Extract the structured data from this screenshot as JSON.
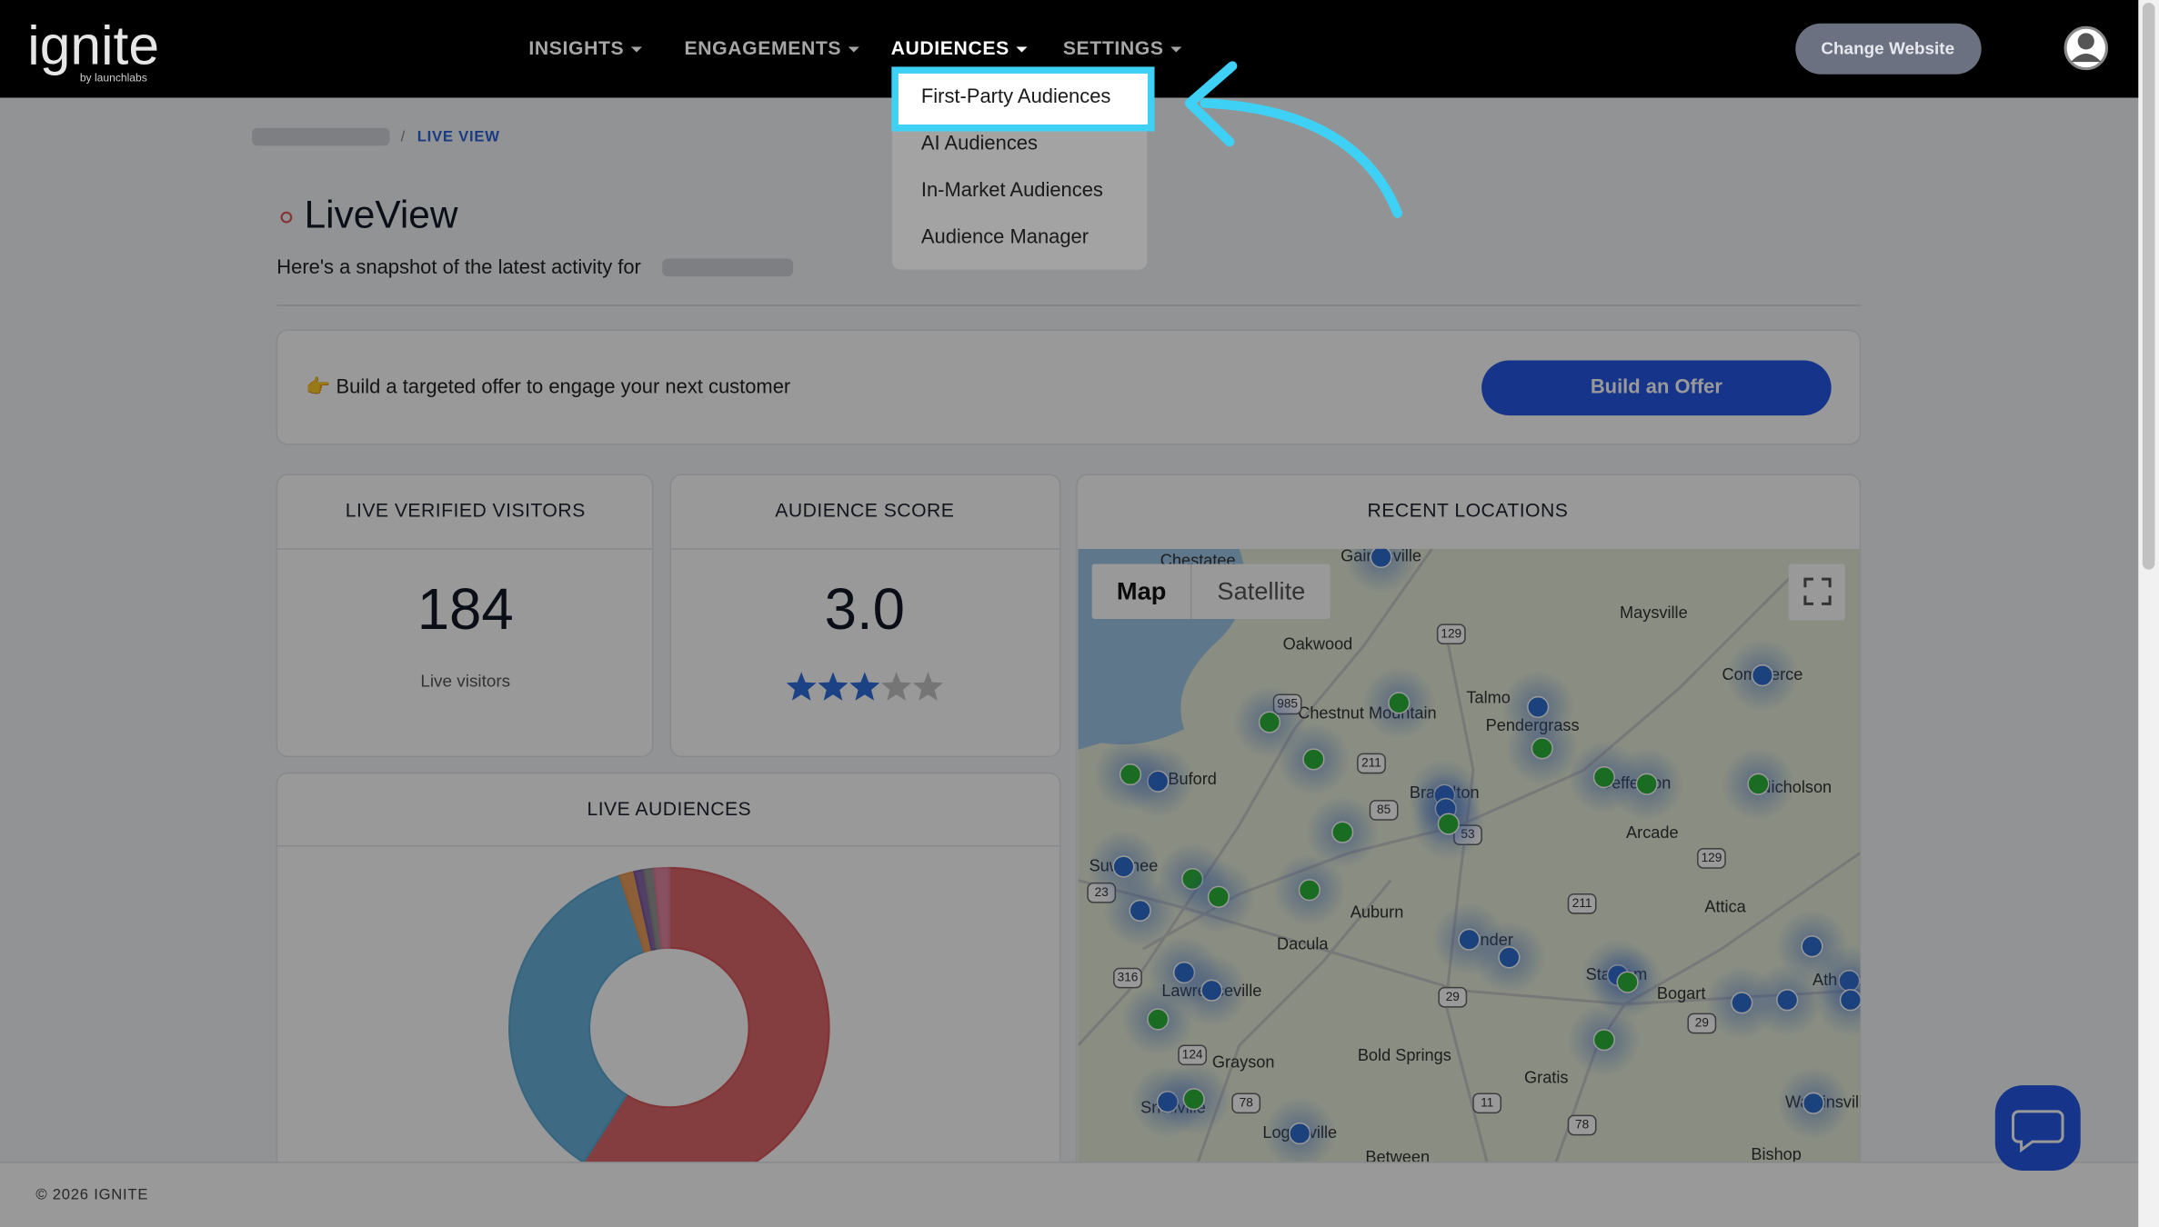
{
  "header": {
    "logo": "ignite",
    "logo_sub": "by launchlabs",
    "menu": [
      "INSIGHTS",
      "ENGAGEMENTS",
      "AUDIENCES",
      "SETTINGS"
    ],
    "change_website": "Change Website"
  },
  "dropdown": [
    "First-Party Audiences",
    "AI Audiences",
    "In-Market Audiences",
    "Audience Manager"
  ],
  "breadcrumb": {
    "current": "LIVE VIEW"
  },
  "page": {
    "title": "LiveView",
    "subtitle": "Here's a snapshot of the latest activity for"
  },
  "offer": {
    "text": "👉 Build a targeted offer to engage your next customer",
    "button": "Build an Offer"
  },
  "visitors": {
    "title": "LIVE VERIFIED VISITORS",
    "value": "184",
    "caption": "Live visitors"
  },
  "score": {
    "title": "AUDIENCE SCORE",
    "value": "3.0",
    "stars": 3
  },
  "locations": {
    "title": "RECENT LOCATIONS",
    "map_button": "Map",
    "satellite_button": "Satellite",
    "places": [
      "Chestatee",
      "Gainesville",
      "Maysville",
      "Oakwood",
      "Commerce",
      "Talmo",
      "Pendergrass",
      "Chestnut Mountain",
      "Buford",
      "Braselton",
      "Jefferson",
      "Nicholson",
      "Arcade",
      "Suwanee",
      "Auburn",
      "Attica",
      "Winder",
      "Dacula",
      "Lawrenceville",
      "Statham",
      "Bogart",
      "Athens",
      "Grayson",
      "Bold Springs",
      "Gratis",
      "Snellville",
      "Loganville",
      "Watkinsville",
      "Between",
      "Bishop"
    ],
    "shields": [
      "129",
      "985",
      "211",
      "85",
      "53",
      "129",
      "23",
      "211",
      "316",
      "29",
      "29",
      "124",
      "78",
      "11",
      "78"
    ]
  },
  "audiences": {
    "title": "LIVE AUDIENCES",
    "slices": [
      {
        "color": "#d9585c",
        "value": 59
      },
      {
        "color": "#5aa9d6",
        "value": 36
      },
      {
        "color": "#e8954f",
        "value": 1.5
      },
      {
        "color": "#7a5aa0",
        "value": 1
      },
      {
        "color": "#8c8c8c",
        "value": 1
      },
      {
        "color": "#e07a9a",
        "value": 1.5
      }
    ]
  },
  "footer": "© 2026 IGNITE"
}
